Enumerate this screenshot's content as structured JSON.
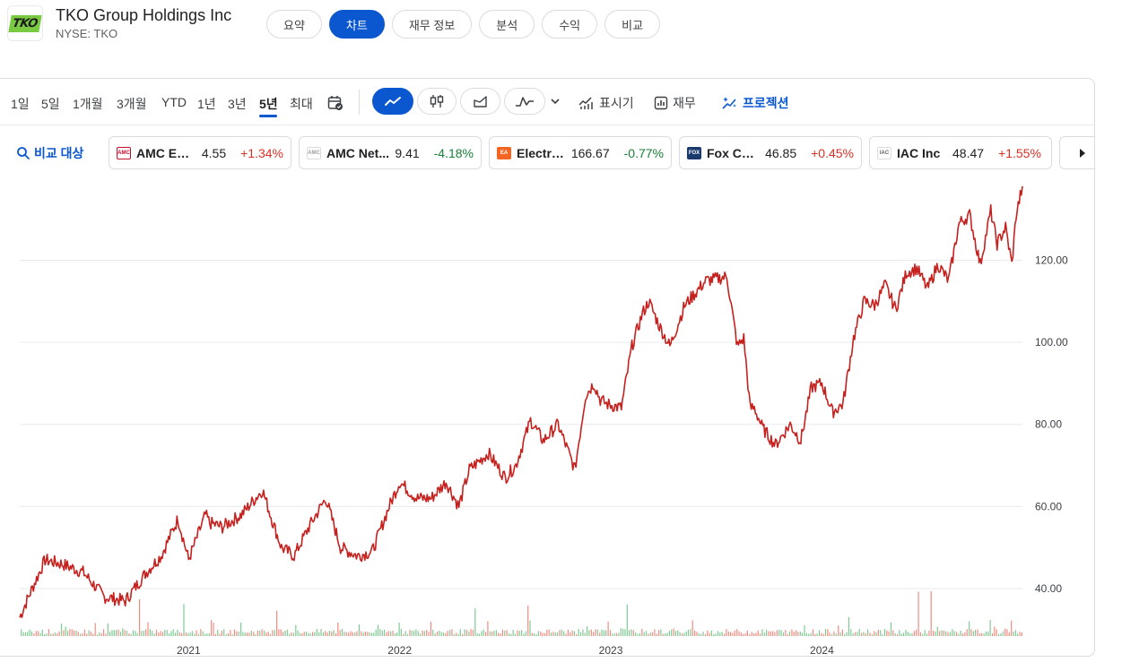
{
  "header": {
    "logo_text": "TKO",
    "company_name": "TKO Group Holdings Inc",
    "ticker": "NYSE: TKO"
  },
  "nav": {
    "tabs": [
      "요약",
      "차트",
      "재무 정보",
      "분석",
      "수익",
      "비교"
    ],
    "active": 1
  },
  "toolbar": {
    "ranges": [
      "1일",
      "5일",
      "1개월",
      "3개월",
      "YTD",
      "1년",
      "3년",
      "5년",
      "최대"
    ],
    "active_range": 7,
    "chart_types": [
      "line-icon",
      "candlestick-icon",
      "area-icon",
      "indicator-icon"
    ],
    "active_chart_type": 0,
    "indicators_label": "표시기",
    "financials_label": "재무",
    "projections_label": "프로젝션"
  },
  "compare": {
    "label": "비교 대상",
    "chips": [
      {
        "name": "AMC Ent...",
        "price": "4.55",
        "change": "+1.34%",
        "direction": "up",
        "logo_color": "#c8102e",
        "logo_text": "AMC"
      },
      {
        "name": "AMC Net...",
        "price": "9.41",
        "change": "-4.18%",
        "direction": "down",
        "logo_color": "#9aa0a6",
        "logo_text": "AMC"
      },
      {
        "name": "Electro...",
        "price": "166.67",
        "change": "-0.77%",
        "direction": "down",
        "logo_color": "#f26522",
        "logo_text": "EA"
      },
      {
        "name": "Fox Corp",
        "price": "46.85",
        "change": "+0.45%",
        "direction": "up",
        "logo_color": "#1a3a6e",
        "logo_text": "FOX"
      },
      {
        "name": "IAC Inc",
        "price": "48.47",
        "change": "+1.55%",
        "direction": "up",
        "logo_color": "#5f6368",
        "logo_text": "IAC"
      }
    ]
  },
  "colors": {
    "accent": "#0b57d0",
    "line": "#c5221f",
    "volume_up": "#81c995",
    "volume_down": "#f28b82"
  },
  "chart_data": {
    "type": "line",
    "ylabels": [
      "40.00",
      "60.00",
      "80.00",
      "100.00",
      "120.00"
    ],
    "ylim": [
      28,
      138
    ],
    "xlabels": [
      "2021",
      "2022",
      "2023",
      "2024"
    ],
    "x_range": [
      2020.2,
      2024.95
    ],
    "grid": true,
    "volume_bars": true,
    "series": [
      {
        "x": [
          2020.2,
          2020.25,
          2020.32,
          2020.4,
          2020.5,
          2020.6,
          2020.7,
          2020.8,
          2020.87,
          2020.95,
          2021.0,
          2021.08,
          2021.1,
          2021.16,
          2021.25,
          2021.35,
          2021.4,
          2021.44,
          2021.5,
          2021.57,
          2021.65,
          2021.72,
          2021.8,
          2021.87,
          2021.95,
          2022.0,
          2022.08,
          2022.15,
          2022.22,
          2022.28,
          2022.33,
          2022.42,
          2022.5,
          2022.55,
          2022.62,
          2022.68,
          2022.75,
          2022.83,
          2022.88,
          2022.92,
          2022.95,
          2022.98,
          2023.05,
          2023.1,
          2023.15,
          2023.18,
          2023.23,
          2023.28,
          2023.35,
          2023.4,
          2023.45,
          2023.55,
          2023.6,
          2023.63,
          2023.66,
          2023.68,
          2023.72,
          2023.78,
          2023.85,
          2023.9,
          2023.95,
          2024.0,
          2024.05,
          2024.1,
          2024.15,
          2024.2,
          2024.25,
          2024.3,
          2024.35,
          2024.4,
          2024.45,
          2024.5,
          2024.55,
          2024.6,
          2024.65,
          2024.7,
          2024.75,
          2024.8,
          2024.83,
          2024.87,
          2024.9,
          2024.92,
          2024.95
        ],
        "values": [
          33,
          39,
          47,
          46,
          44,
          38,
          37,
          44,
          48,
          57,
          47,
          58,
          56,
          55,
          58,
          64,
          56,
          50,
          48,
          55,
          62,
          50,
          48,
          49,
          60,
          66,
          62,
          62,
          66,
          60,
          69,
          73,
          67,
          70,
          81,
          76,
          80,
          69,
          87,
          90,
          86,
          85,
          84,
          99,
          107,
          110,
          104,
          99,
          109,
          112,
          115,
          116,
          99,
          101,
          84,
          84,
          79,
          75,
          80,
          76,
          89,
          90,
          83,
          85,
          101,
          110,
          109,
          114,
          108,
          117,
          118,
          113,
          119,
          115,
          129,
          131,
          119,
          132,
          124,
          128,
          119,
          131,
          138
        ]
      }
    ]
  }
}
